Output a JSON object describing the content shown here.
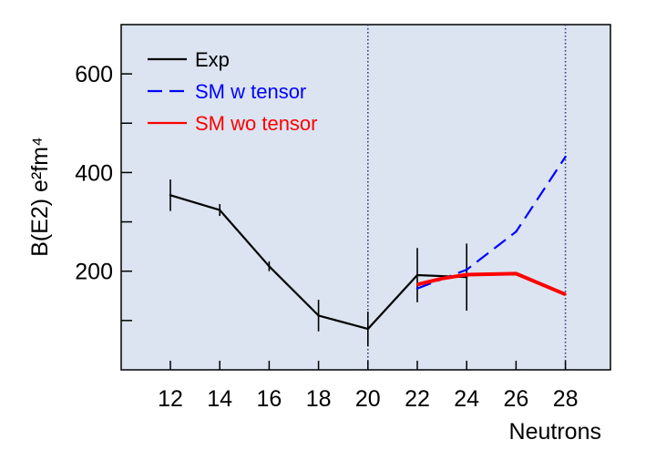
{
  "chart_data": {
    "type": "line",
    "xlabel": "Neutrons",
    "ylabel": "B(E2) e²fm⁴",
    "xlim": [
      10,
      29
    ],
    "ylim": [
      0,
      700
    ],
    "x_ticks": [
      12,
      14,
      16,
      18,
      20,
      22,
      24,
      26,
      28
    ],
    "y_ticks_labeled": [
      200,
      400,
      600
    ],
    "y_ticks_minor": [
      100,
      300,
      500
    ],
    "plot_background": "#dbe4f0",
    "grid": false,
    "vertical_reference_lines": [
      20,
      28
    ],
    "legend_position": "top-left",
    "series": [
      {
        "name": "Exp",
        "color": "#000000",
        "style": "solid",
        "x": [
          12,
          14,
          16,
          18,
          20,
          22,
          24
        ],
        "y": [
          354,
          324,
          210,
          110,
          83,
          192,
          188
        ],
        "err": [
          32,
          12,
          10,
          32,
          35,
          55,
          68
        ]
      },
      {
        "name": "SM w tensor",
        "color": "#0000ff",
        "style": "dashed",
        "x": [
          22,
          24,
          26,
          28
        ],
        "y": [
          165,
          203,
          280,
          432
        ]
      },
      {
        "name": "SM wo tensor",
        "color": "#ff0000",
        "style": "solid",
        "x": [
          22,
          23,
          24,
          26,
          28
        ],
        "y": [
          173,
          185,
          193,
          195,
          153
        ]
      }
    ]
  }
}
